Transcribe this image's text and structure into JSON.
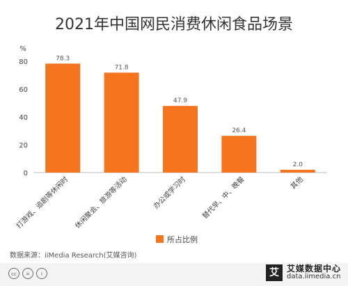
{
  "chart_data": {
    "type": "bar",
    "title": "2021年中国网民消费休闲食品场景",
    "unit": "%",
    "categories": [
      "打游戏、追剧等休闲时",
      "休闲聚会、旅游等活动",
      "办公或学习时",
      "替代早、中、晚餐",
      "其他"
    ],
    "values": [
      78.3,
      71.8,
      47.9,
      26.4,
      2.0
    ],
    "value_labels": [
      "78.3",
      "71.8",
      "47.9",
      "26.4",
      "2.0"
    ],
    "yticks": [
      "0",
      "20",
      "40",
      "60",
      "80"
    ],
    "ylim": [
      0,
      90
    ],
    "legend": "所占比例",
    "legend_position": "bottom-center",
    "grid": false,
    "bar_color": "#F5741E"
  },
  "source": "数据来源：iiMedia Research(艾媒咨询)",
  "brand": {
    "name": "艾媒数据中心",
    "url": "data.iimedia.cn",
    "logo": "艾"
  },
  "license_icons": [
    "cc-icon",
    "by-icon",
    "person-icon"
  ]
}
